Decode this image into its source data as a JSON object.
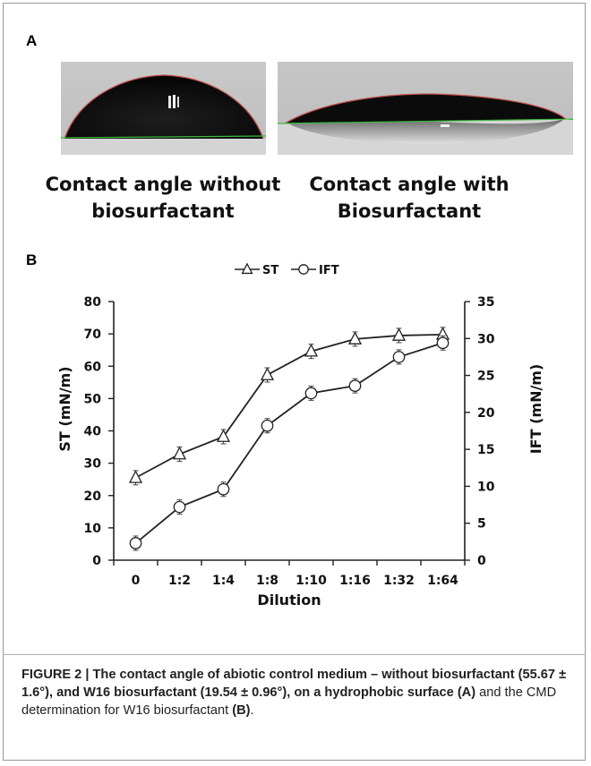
{
  "panel_a": {
    "label": "A",
    "caption_left_line1": "Contact angle without",
    "caption_left_line2": "biosurfactant",
    "caption_right_line1": "Contact angle with",
    "caption_right_line2": "Biosurfactant"
  },
  "panel_b": {
    "label": "B"
  },
  "chart_data": {
    "type": "line",
    "categories": [
      "0",
      "1:2",
      "1:4",
      "1:8",
      "1:10",
      "1:16",
      "1:32",
      "1:64"
    ],
    "xlabel": "Dilution",
    "ylabel": "ST (mN/m)",
    "y2label": "IFT (mN/m)",
    "ylim": [
      0,
      80
    ],
    "y2lim": [
      0,
      35
    ],
    "yticks": [
      0,
      10,
      20,
      30,
      40,
      50,
      60,
      70,
      80
    ],
    "y2ticks": [
      0,
      5,
      10,
      15,
      20,
      25,
      30,
      35
    ],
    "legend_position": "top-center",
    "grid": false,
    "series": [
      {
        "name": "ST",
        "axis": "left",
        "marker": "triangle",
        "values": [
          25.5,
          32.8,
          38.2,
          57.3,
          64.6,
          68.4,
          69.5,
          69.8
        ]
      },
      {
        "name": "IFT",
        "axis": "right",
        "marker": "circle",
        "values": [
          2.3,
          7.2,
          9.6,
          18.2,
          22.6,
          23.6,
          27.5,
          29.4
        ]
      }
    ]
  },
  "figure_caption": {
    "label": "FIGURE 2 | The contact angle of abiotic control medium – without biosurfactant (55.67 ± 1.6°), and W16 biosurfactant (19.54 ± 0.96°), on a hydrophobic surface",
    "ref_a": "(A)",
    "mid": "and the CMD determination for W16 biosurfactant",
    "ref_b": "(B)",
    "end": "."
  }
}
